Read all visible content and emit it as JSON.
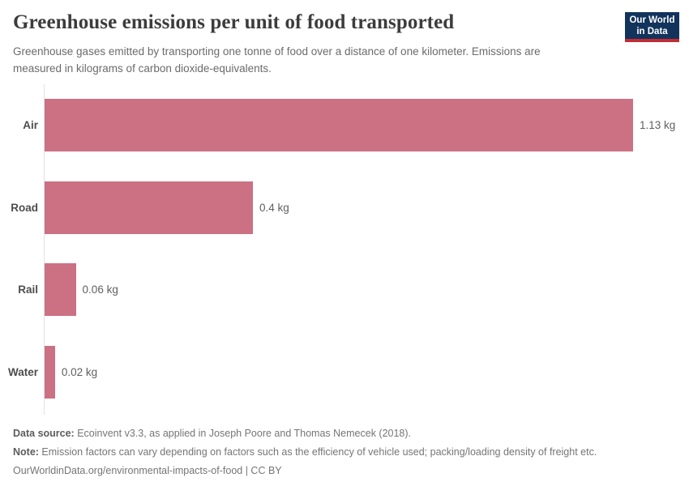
{
  "header": {
    "title": "Greenhouse emissions per unit of food transported",
    "subtitle_line1": "Greenhouse gases emitted by transporting one tonne of food over a distance of one kilometer. Emissions are",
    "subtitle_line2": "measured in kilograms of carbon dioxide-equivalents.",
    "logo": {
      "line1": "Our World",
      "line2": "in Data"
    }
  },
  "chart_data": {
    "type": "bar",
    "orientation": "horizontal",
    "title": "Greenhouse emissions per unit of food transported",
    "subtitle": "Greenhouse gases emitted by transporting one tonne of food over a distance of one kilometer. Emissions are measured in kilograms of carbon dioxide-equivalents.",
    "categories": [
      "Air",
      "Road",
      "Rail",
      "Water"
    ],
    "values": [
      1.13,
      0.4,
      0.06,
      0.02
    ],
    "value_labels": [
      "1.13 kg",
      "0.4 kg",
      "0.06 kg",
      "0.02 kg"
    ],
    "unit": "kg",
    "xlim": [
      0,
      1.13
    ],
    "grid": false,
    "legend": false
  },
  "footer": {
    "data_source_label": "Data source:",
    "data_source_text": " Ecoinvent v3.3, as applied in Joseph Poore and Thomas Nemecek (2018).",
    "note_label": "Note:",
    "note_text": " Emission factors can vary depending on factors such as the efficiency of vehicle used; packing/loading density of freight etc.",
    "license": "OurWorldinData.org/environmental-impacts-of-food | CC BY"
  },
  "colors": {
    "bar": "#cb7183",
    "logo_bg": "#12335c",
    "logo_accent": "#c22d35",
    "axis": "#e2e2e2"
  }
}
